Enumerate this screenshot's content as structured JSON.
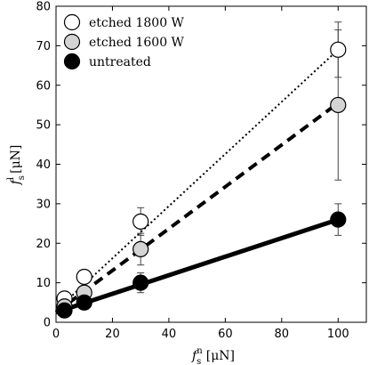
{
  "chart_data": {
    "type": "scatter",
    "xlabel": "f_s^n [μN]",
    "ylabel": "f_s^l [μN]",
    "xlabel_parts": {
      "base": "f",
      "sup": "n",
      "sub": "s",
      "unit": "[μN]"
    },
    "ylabel_parts": {
      "base": "f",
      "sup": "l",
      "sub": "s",
      "unit": "[μN]"
    },
    "xlim": [
      0,
      110
    ],
    "ylim": [
      0,
      80
    ],
    "xticks": [
      0,
      20,
      40,
      60,
      80,
      100
    ],
    "yticks": [
      0,
      10,
      20,
      30,
      40,
      50,
      60,
      70,
      80
    ],
    "grid": false,
    "legend_position": "top-left",
    "series": [
      {
        "name": "etched 1800 W",
        "marker_fill": "#ffffff",
        "line_style": "dotted",
        "points": [
          {
            "x": 3,
            "y": 6,
            "err": 1
          },
          {
            "x": 10,
            "y": 11.5,
            "err": 1
          },
          {
            "x": 30,
            "y": 25.5,
            "err": 3.5
          },
          {
            "x": 100,
            "y": 69,
            "err": 7
          }
        ],
        "fit": [
          [
            0,
            3
          ],
          [
            100,
            69
          ]
        ]
      },
      {
        "name": "etched 1600 W",
        "marker_fill": "#d4d4d4",
        "line_style": "dashed",
        "points": [
          {
            "x": 3,
            "y": 4,
            "err": 1
          },
          {
            "x": 10,
            "y": 7.5,
            "err": 1.5
          },
          {
            "x": 30,
            "y": 18.5,
            "err": 4
          },
          {
            "x": 100,
            "y": 55,
            "err": 19
          }
        ],
        "fit": [
          [
            0,
            2.5
          ],
          [
            100,
            55.5
          ]
        ]
      },
      {
        "name": "untreated",
        "marker_fill": "#000000",
        "line_style": "solid",
        "points": [
          {
            "x": 3,
            "y": 3,
            "err": 0.8
          },
          {
            "x": 10,
            "y": 5,
            "err": 1
          },
          {
            "x": 30,
            "y": 10,
            "err": 2.5
          },
          {
            "x": 100,
            "y": 26,
            "err": 4
          }
        ],
        "fit": [
          [
            0,
            2.5
          ],
          [
            100,
            26
          ]
        ]
      }
    ]
  }
}
